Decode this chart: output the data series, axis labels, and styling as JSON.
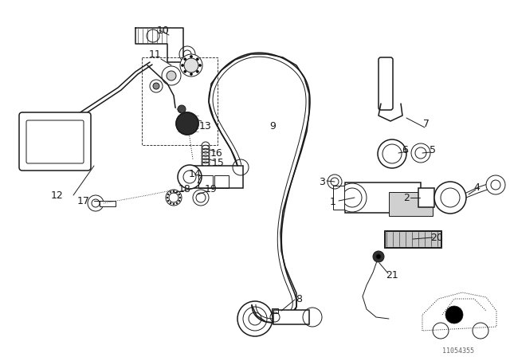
{
  "bg_color": "#ffffff",
  "line_color": "#1a1a1a",
  "watermark": "11054355"
}
